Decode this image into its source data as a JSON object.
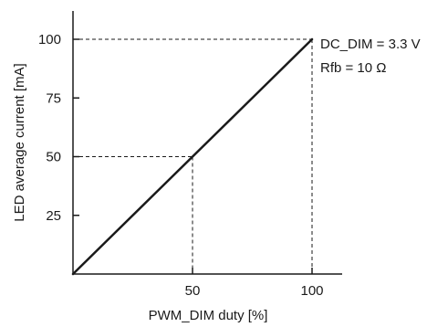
{
  "chart_data": {
    "type": "line",
    "xlabel": "PWM_DIM duty [%]",
    "ylabel": "LED average current [mA]",
    "xlim": [
      0,
      100
    ],
    "ylim": [
      0,
      100
    ],
    "x_ticks": [
      "50",
      "100"
    ],
    "y_ticks": [
      "25",
      "50",
      "75",
      "100"
    ],
    "x_tick_values": [
      50,
      100
    ],
    "y_tick_values": [
      25,
      50,
      75,
      100
    ],
    "series": [
      {
        "x": [
          0,
          50,
          100
        ],
        "y": [
          0,
          50,
          100
        ]
      }
    ],
    "guides": [
      {
        "x": 50,
        "y": 50
      },
      {
        "x": 100,
        "y": 100
      }
    ],
    "annotations": [
      "DC_DIM = 3.3 V",
      "Rfb = 10 Ω"
    ],
    "grid": false,
    "colors": {
      "line": "#1a1a1a",
      "axis": "#1a1a1a"
    }
  }
}
